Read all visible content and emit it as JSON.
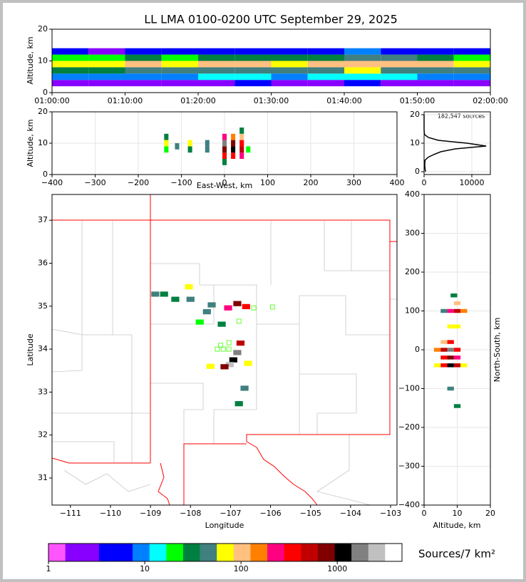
{
  "chart_data": [
    {
      "type": "heatmap",
      "title": "LL LMA 0100-0200 UTC September 29, 2025",
      "ylabel": "Altitude, km",
      "xlim": [
        0,
        60
      ],
      "xticks": [
        {
          "value": 0,
          "label": "01:00:00"
        },
        {
          "value": 10,
          "label": "01:10:00"
        },
        {
          "value": 20,
          "label": "01:20:00"
        },
        {
          "value": 30,
          "label": "01:30:00"
        },
        {
          "value": 40,
          "label": "01:40:00"
        },
        {
          "value": 50,
          "label": "01:50:00"
        },
        {
          "value": 60,
          "label": "02:00:00"
        }
      ],
      "ylim": [
        0,
        20
      ],
      "yticks": [
        0,
        10,
        20
      ],
      "grid": false,
      "x": [
        2.5,
        7.5,
        12.5,
        17.5,
        22.5,
        27.5,
        32.5,
        37.5,
        42.5,
        47.5,
        52.5,
        57.5
      ],
      "y": [
        3,
        5,
        7,
        9,
        11,
        13
      ],
      "z": [
        [
          2,
          3,
          2,
          3,
          2,
          4,
          3,
          3,
          4,
          3,
          2,
          3
        ],
        [
          9,
          8,
          11,
          10,
          13,
          12,
          10,
          14,
          16,
          13,
          11,
          10
        ],
        [
          35,
          30,
          42,
          38,
          50,
          45,
          40,
          52,
          60,
          55,
          44,
          40
        ],
        [
          70,
          60,
          85,
          75,
          95,
          90,
          80,
          100,
          120,
          105,
          85,
          78
        ],
        [
          22,
          20,
          28,
          25,
          32,
          30,
          26,
          36,
          48,
          38,
          28,
          25
        ],
        [
          4,
          3,
          5,
          4,
          6,
          5,
          4,
          7,
          9,
          7,
          5,
          4
        ]
      ]
    },
    {
      "type": "heatmap",
      "xlabel": "East-West, km",
      "ylabel": "Altitude, km",
      "xlim": [
        -400,
        400
      ],
      "xticks": [
        {
          "value": -400,
          "label": "−400"
        },
        {
          "value": -300,
          "label": "−300"
        },
        {
          "value": -200,
          "label": "−200"
        },
        {
          "value": -100,
          "label": "−100"
        },
        0,
        100,
        200,
        300,
        400
      ],
      "ylim": [
        0,
        20
      ],
      "yticks": [
        0,
        10,
        20
      ],
      "grid": true,
      "x": [
        -135,
        -135,
        -135,
        -110,
        -80,
        -80,
        -40,
        -40,
        0,
        0,
        0,
        0,
        0,
        20,
        20,
        20,
        20,
        40,
        40,
        40,
        40,
        40,
        55
      ],
      "y": [
        8,
        10,
        12,
        9,
        8,
        10,
        8,
        10,
        4,
        6,
        8,
        10,
        12,
        6,
        8,
        10,
        12,
        6,
        8,
        10,
        12,
        14,
        8
      ],
      "values": [
        20,
        80,
        30,
        40,
        30,
        60,
        50,
        40,
        30,
        300,
        900,
        1500,
        200,
        400,
        1200,
        800,
        150,
        200,
        600,
        300,
        100,
        30,
        20
      ]
    },
    {
      "type": "line",
      "annotation": "182,547 sources",
      "xlim": [
        0,
        13880
      ],
      "xticks": [
        0,
        10000
      ],
      "ylim": [
        -1,
        21
      ],
      "yticks": [
        0,
        10,
        20
      ],
      "grid": true,
      "color": "#000000",
      "x": [
        300,
        200,
        150,
        150,
        200,
        800,
        2000,
        3500,
        6500,
        13000,
        9000,
        3000,
        900,
        100,
        20,
        0,
        0,
        0,
        0,
        0,
        0
      ],
      "y": [
        0,
        1,
        2,
        3,
        4,
        5,
        6,
        7,
        8,
        9,
        10,
        11,
        12,
        13,
        14,
        15,
        16,
        17,
        18,
        19,
        20
      ]
    },
    {
      "type": "heatmap",
      "xlabel": "Longitude",
      "ylabel": "Latitude",
      "xlim": [
        -111.46,
        -102.84
      ],
      "xticks": [
        {
          "value": -111,
          "label": "−111"
        },
        {
          "value": -110,
          "label": "−110"
        },
        {
          "value": -109,
          "label": "−109"
        },
        {
          "value": -108,
          "label": "−108"
        },
        {
          "value": -107,
          "label": "−107"
        },
        {
          "value": -106,
          "label": "−106"
        },
        {
          "value": -105,
          "label": "−105"
        },
        {
          "value": -104,
          "label": "−104"
        },
        {
          "value": -103,
          "label": "−103"
        }
      ],
      "ylim": [
        30.37,
        37.6
      ],
      "yticks": [
        31,
        32,
        33,
        34,
        35,
        36,
        37
      ],
      "grid": false,
      "x": [
        -108.88,
        -108.66,
        -108.38,
        -108.04,
        -108.0,
        -107.47,
        -107.59,
        -107.77,
        -107.22,
        -107.06,
        -106.83,
        -106.61,
        -106.75,
        -106.83,
        -106.93,
        -107.02,
        -107.15,
        -107.5,
        -106.56,
        -106.65,
        -106.79
      ],
      "y": [
        35.28,
        35.28,
        35.16,
        35.45,
        35.16,
        35.03,
        34.87,
        34.63,
        34.58,
        34.96,
        35.06,
        34.99,
        34.14,
        33.92,
        33.75,
        33.64,
        33.59,
        33.6,
        33.67,
        33.09,
        32.73
      ],
      "values": [
        40,
        30,
        35,
        60,
        45,
        50,
        40,
        25,
        30,
        200,
        900,
        300,
        500,
        1500,
        1200,
        2500,
        900,
        60,
        80,
        40,
        30
      ],
      "stations": {
        "color": "#66ff33",
        "x": [
          -106.42,
          -105.95,
          -106.79,
          -107.04,
          -107.25,
          -107.33,
          -107.18,
          -107.04
        ],
        "y": [
          34.96,
          34.98,
          34.65,
          34.15,
          34.09,
          34.0,
          34.0,
          34.0
        ]
      }
    },
    {
      "type": "heatmap",
      "xlabel": "Altitude, km",
      "ylabel": "North-South, km",
      "xlim": [
        0,
        20
      ],
      "xticks": [
        0,
        10,
        20
      ],
      "ylim": [
        -400,
        400
      ],
      "yticks": [
        {
          "value": -400,
          "label": "−400"
        },
        {
          "value": -300,
          "label": "−300"
        },
        {
          "value": -200,
          "label": "−200"
        },
        {
          "value": -100,
          "label": "−100"
        },
        0,
        100,
        200,
        300,
        400
      ],
      "grid": true,
      "x": [
        9,
        6,
        8,
        10,
        12,
        10,
        8,
        10,
        6,
        8,
        4,
        6,
        8,
        10,
        6,
        8,
        10,
        4,
        6,
        8,
        10,
        12,
        8,
        10
      ],
      "y": [
        140,
        100,
        100,
        100,
        100,
        120,
        60,
        60,
        20,
        20,
        0,
        0,
        0,
        0,
        -20,
        -20,
        -20,
        -40,
        -40,
        -40,
        -40,
        -40,
        -100,
        -145
      ],
      "values": [
        30,
        40,
        200,
        600,
        150,
        100,
        60,
        80,
        100,
        300,
        150,
        600,
        1500,
        300,
        400,
        900,
        200,
        80,
        300,
        1000,
        500,
        80,
        40,
        30
      ]
    },
    {
      "type": "colorbar",
      "label": "Sources/7 km²",
      "log": true,
      "xlim": [
        1,
        4700
      ],
      "xticks": [
        1,
        10,
        100,
        1000
      ],
      "colors": [
        "#ff55ff",
        "#8800ff",
        "#8800ff",
        "#0000ff",
        "#0000ff",
        "#0080ff",
        "#00ffff",
        "#00ff00",
        "#008040",
        "#408080",
        "#ffff00",
        "#ffc080",
        "#ff8000",
        "#ff0080",
        "#ff0000",
        "#c00000",
        "#800000",
        "#000000",
        "#808080",
        "#c0c0c0",
        "#ffffff"
      ]
    }
  ]
}
